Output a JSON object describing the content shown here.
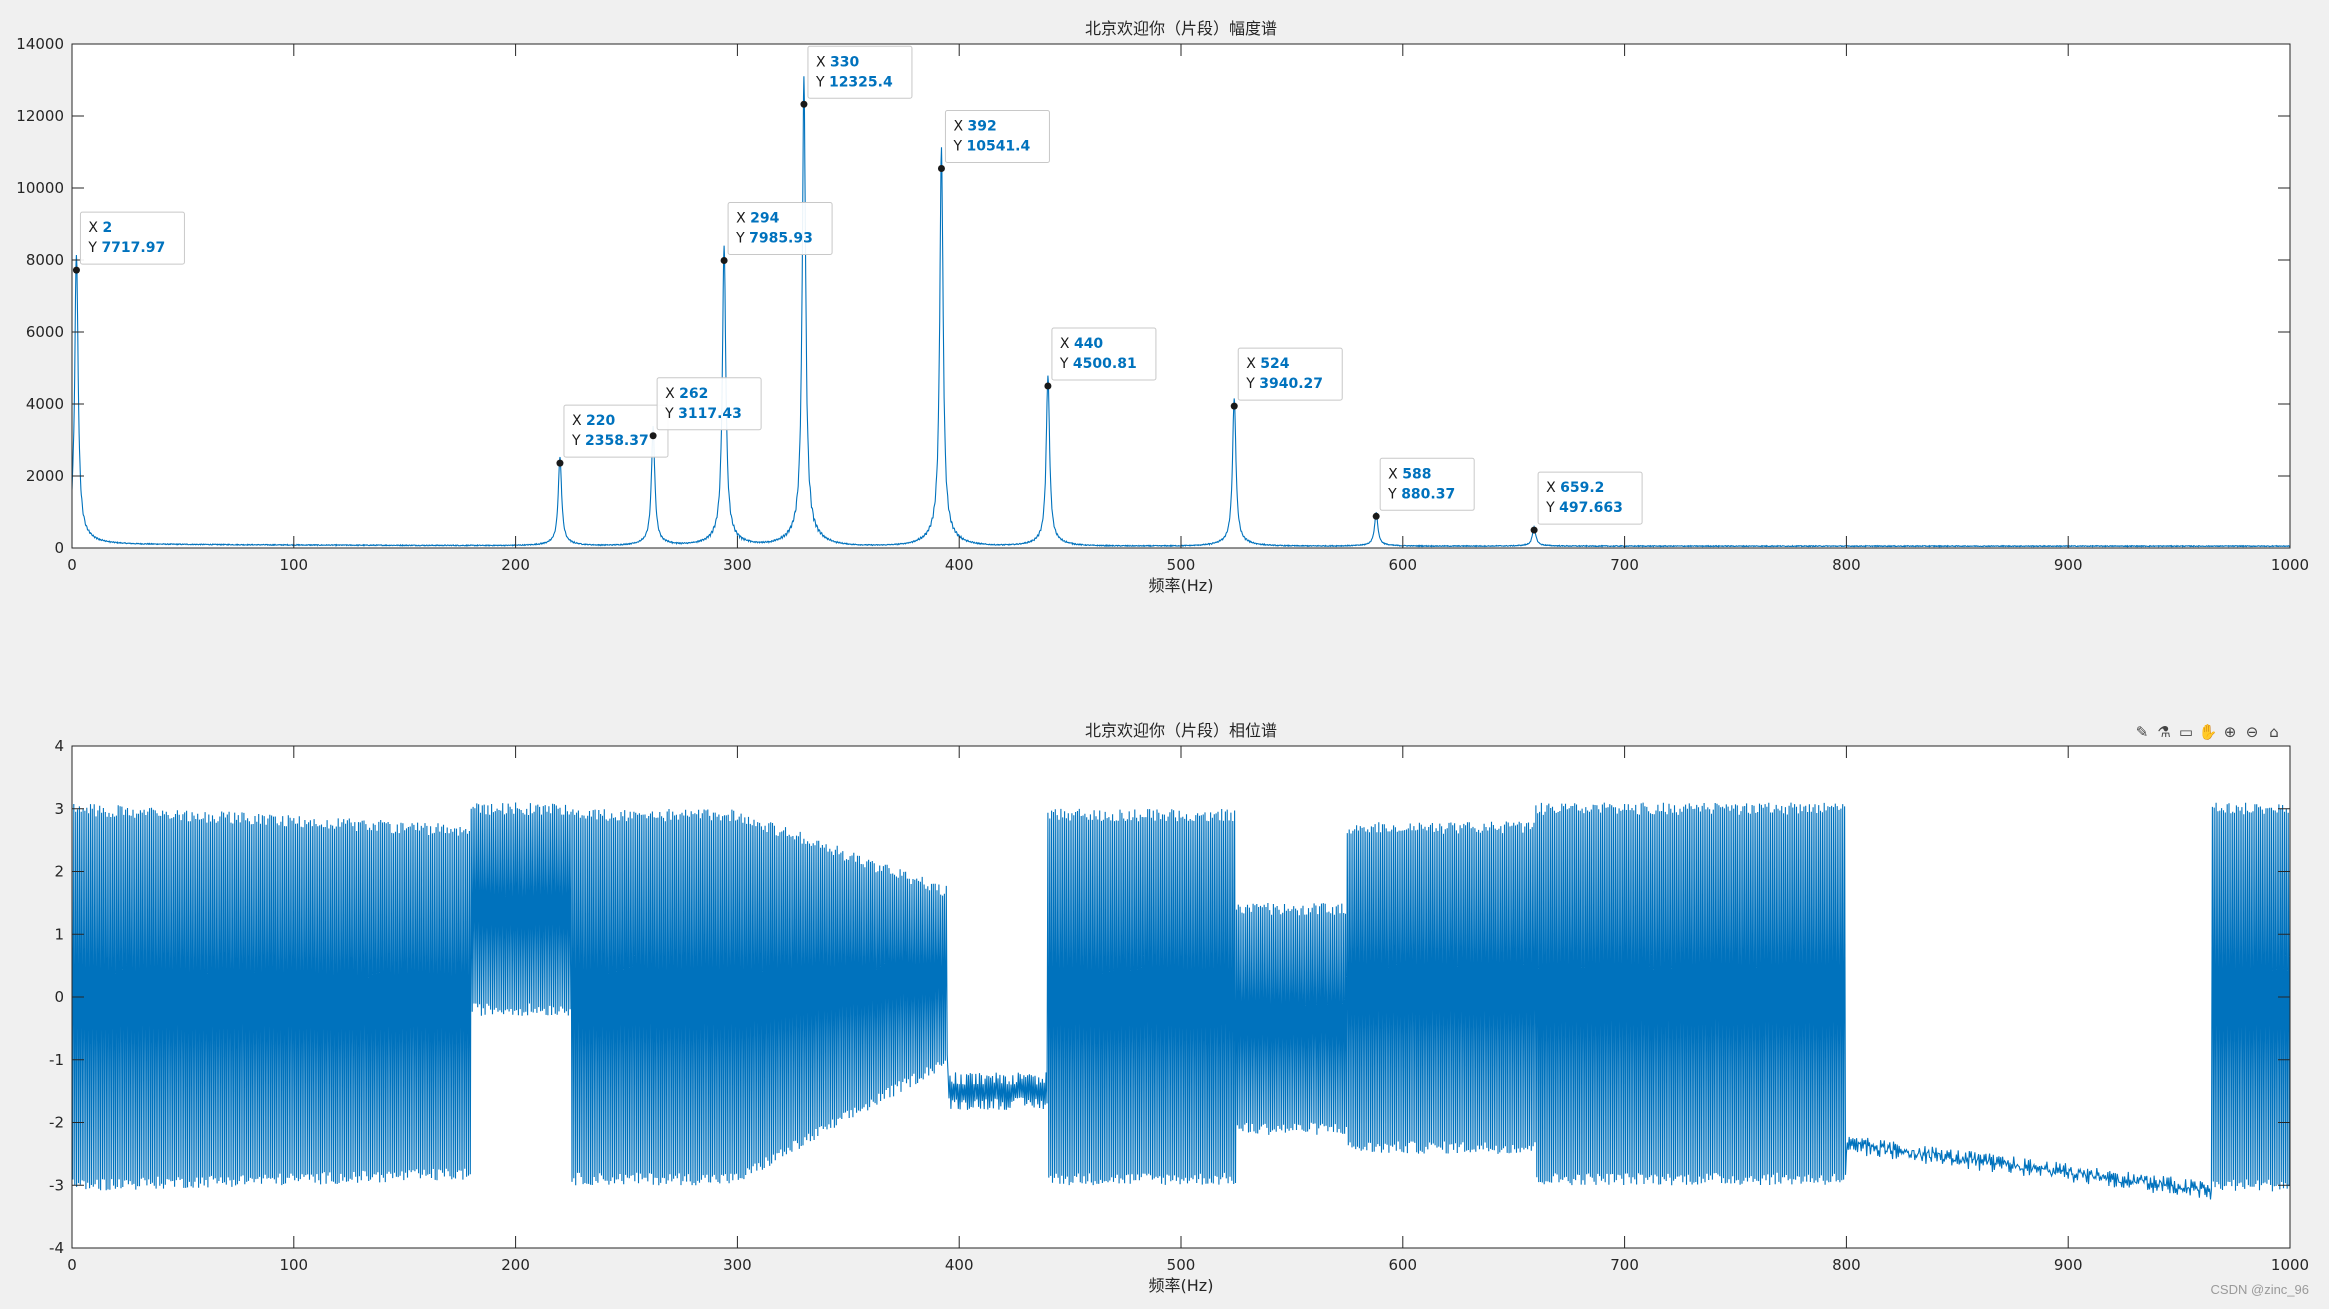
{
  "toolbar": {
    "icons": [
      "brush-icon",
      "data-tip-icon",
      "export-icon",
      "pan-icon",
      "zoom-in-icon",
      "zoom-out-icon",
      "home-icon"
    ],
    "glyphs": [
      "✎",
      "⚗",
      "▭",
      "✋",
      "⊕",
      "⊖",
      "⌂"
    ]
  },
  "watermark": "CSDN @zinc_96",
  "chart_data": [
    {
      "type": "line",
      "title": "北京欢迎你（片段）幅度谱",
      "xlabel": "频率(Hz)",
      "ylabel": "",
      "xlim": [
        0,
        1000
      ],
      "ylim": [
        0,
        14000
      ],
      "xticks": [
        0,
        100,
        200,
        300,
        400,
        500,
        600,
        700,
        800,
        900,
        1000
      ],
      "yticks": [
        0,
        2000,
        4000,
        6000,
        8000,
        10000,
        12000,
        14000
      ],
      "line_color": "#0072bd",
      "grid": false,
      "peaks": [
        {
          "x": 2,
          "y": 7717.97
        },
        {
          "x": 220,
          "y": 2358.37
        },
        {
          "x": 262,
          "y": 3117.43
        },
        {
          "x": 294,
          "y": 7985.93
        },
        {
          "x": 330,
          "y": 12325.4
        },
        {
          "x": 392,
          "y": 10541.4
        },
        {
          "x": 440,
          "y": 4500.81
        },
        {
          "x": 524,
          "y": 3940.27
        },
        {
          "x": 588,
          "y": 880.37
        },
        {
          "x": 659.2,
          "y": 497.663
        }
      ],
      "datatips": [
        {
          "x_label": "X",
          "x_value": "2",
          "y_label": "Y",
          "y_value": "7717.97"
        },
        {
          "x_label": "X",
          "x_value": "220",
          "y_label": "Y",
          "y_value": "2358.37"
        },
        {
          "x_label": "X",
          "x_value": "262",
          "y_label": "Y",
          "y_value": "3117.43"
        },
        {
          "x_label": "X",
          "x_value": "294",
          "y_label": "Y",
          "y_value": "7985.93"
        },
        {
          "x_label": "X",
          "x_value": "330",
          "y_label": "Y",
          "y_value": "12325.4"
        },
        {
          "x_label": "X",
          "x_value": "392",
          "y_label": "Y",
          "y_value": "10541.4"
        },
        {
          "x_label": "X",
          "x_value": "440",
          "y_label": "Y",
          "y_value": "4500.81"
        },
        {
          "x_label": "X",
          "x_value": "524",
          "y_label": "Y",
          "y_value": "3940.27"
        },
        {
          "x_label": "X",
          "x_value": "588",
          "y_label": "Y",
          "y_value": "880.37"
        },
        {
          "x_label": "X",
          "x_value": "659.2",
          "y_label": "Y",
          "y_value": "497.663"
        }
      ]
    },
    {
      "type": "line",
      "title": "北京欢迎你（片段）相位谱",
      "xlabel": "频率(Hz)",
      "ylabel": "",
      "xlim": [
        0,
        1000
      ],
      "ylim": [
        -4,
        4
      ],
      "xticks": [
        0,
        100,
        200,
        300,
        400,
        500,
        600,
        700,
        800,
        900,
        1000
      ],
      "yticks": [
        -4,
        -3,
        -2,
        -1,
        0,
        1,
        2,
        3,
        4
      ],
      "line_color": "#0072bd",
      "grid": false
    }
  ]
}
